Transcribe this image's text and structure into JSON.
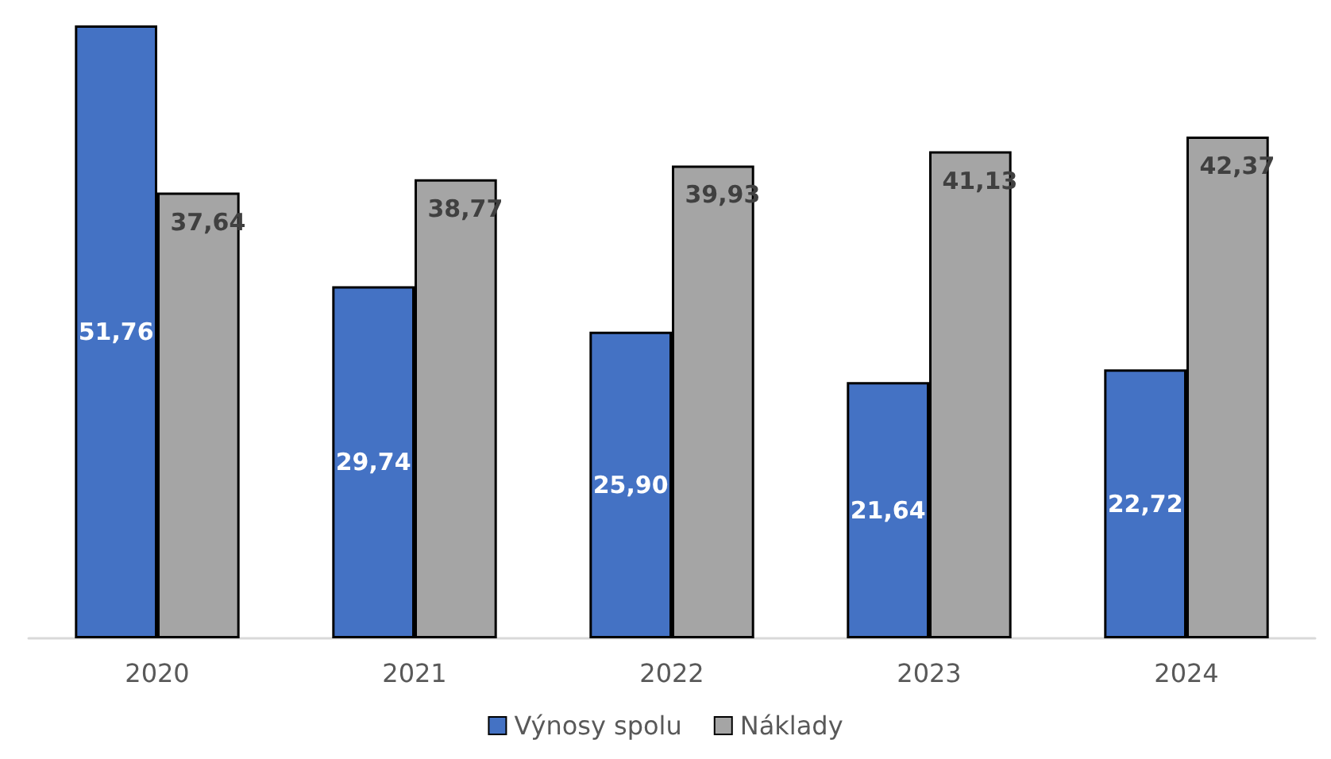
{
  "chart_data": {
    "type": "bar",
    "categories": [
      "2020",
      "2021",
      "2022",
      "2023",
      "2024"
    ],
    "series": [
      {
        "name": "Výnosy spolu",
        "color": "#4472c4",
        "values": [
          51.76,
          29.74,
          25.9,
          21.64,
          22.72
        ],
        "value_labels": [
          "51,76",
          "29,74",
          "25,90",
          "21,64",
          "22,72"
        ]
      },
      {
        "name": "Náklady",
        "color": "#a5a5a5",
        "values": [
          37.64,
          38.77,
          39.93,
          41.13,
          42.37
        ],
        "value_labels": [
          "37,64",
          "38,77",
          "39,93",
          "41,13",
          "42,37"
        ]
      }
    ],
    "legend": "bottom"
  }
}
